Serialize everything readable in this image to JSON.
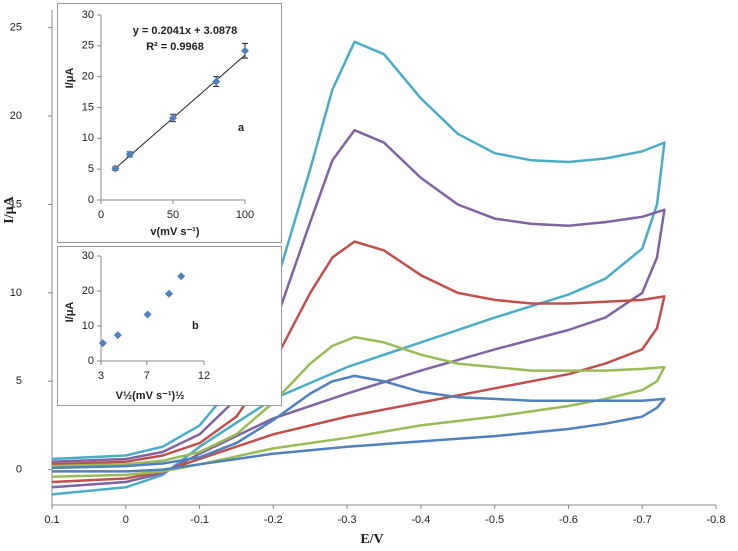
{
  "chart_data": [
    {
      "type": "line",
      "x_label": "E/V",
      "y_label": "I/μA",
      "xlim": [
        0.1,
        -0.8
      ],
      "xticks": [
        0.1,
        0,
        -0.1,
        -0.2,
        -0.3,
        -0.4,
        -0.5,
        -0.6,
        -0.7,
        -0.8
      ],
      "ylim": [
        -2,
        26
      ],
      "yticks": [
        0,
        5,
        10,
        15,
        20,
        25
      ],
      "x": [
        0.1,
        0,
        -0.05,
        -0.1,
        -0.15,
        -0.2,
        -0.25,
        -0.28,
        -0.31,
        -0.35,
        -0.4,
        -0.45,
        -0.5,
        -0.55,
        -0.6,
        -0.65,
        -0.7,
        -0.73,
        -0.72,
        -0.7,
        -0.65,
        -0.6,
        -0.5,
        -0.4,
        -0.3,
        -0.2,
        -0.1,
        -0.05,
        0,
        0.1
      ],
      "series": [
        {
          "color": "#4bacc6",
          "values": [
            0.6,
            0.8,
            1.3,
            2.5,
            5,
            10,
            17,
            21.5,
            24.2,
            23.5,
            21,
            19,
            17.9,
            17.5,
            17.4,
            17.6,
            18,
            18.5,
            15,
            12.5,
            10.8,
            9.9,
            8.6,
            7.2,
            5.8,
            4.0,
            1.3,
            -0.3,
            -1.0,
            -1.4
          ]
        },
        {
          "color": "#8064a2",
          "values": [
            0.45,
            0.6,
            1.0,
            2.0,
            4,
            8,
            14,
            17.5,
            19.2,
            18.5,
            16.5,
            15,
            14.2,
            13.9,
            13.8,
            14,
            14.3,
            14.7,
            12,
            10,
            8.6,
            7.9,
            6.8,
            5.6,
            4.3,
            2.9,
            0.9,
            -0.2,
            -0.7,
            -1.0
          ]
        },
        {
          "color": "#c0504d",
          "values": [
            0.3,
            0.45,
            0.8,
            1.5,
            3,
            6,
            10,
            12,
            12.9,
            12.4,
            11,
            10,
            9.6,
            9.4,
            9.4,
            9.5,
            9.6,
            9.8,
            8,
            6.8,
            6,
            5.4,
            4.6,
            3.8,
            3.0,
            2.0,
            0.6,
            -0.1,
            -0.5,
            -0.7
          ]
        },
        {
          "color": "#9bbb59",
          "values": [
            0.2,
            0.3,
            0.5,
            1,
            2,
            3.8,
            6,
            7,
            7.5,
            7.2,
            6.5,
            6,
            5.8,
            5.6,
            5.6,
            5.6,
            5.7,
            5.8,
            5,
            4.5,
            4,
            3.6,
            3.0,
            2.5,
            1.8,
            1.2,
            0.3,
            -0.1,
            -0.3,
            -0.4
          ]
        },
        {
          "color": "#4f81bd",
          "values": [
            0.1,
            0.2,
            0.35,
            0.7,
            1.5,
            2.8,
            4.3,
            5.0,
            5.3,
            5.0,
            4.4,
            4.1,
            4.0,
            3.9,
            3.9,
            3.9,
            3.9,
            4.0,
            3.5,
            3.0,
            2.6,
            2.3,
            1.9,
            1.6,
            1.3,
            0.9,
            0.3,
            0,
            -0.1,
            -0.1
          ]
        }
      ]
    },
    {
      "type": "scatter",
      "x_label": "v(mV s⁻¹)",
      "y_label": "I/μA",
      "annotation": "a",
      "equation": "y = 0.2041x + 3.0878",
      "r_squared": "R² = 0.9968",
      "xlim": [
        0,
        100
      ],
      "xticks": [
        0,
        50,
        100
      ],
      "ylim": [
        0,
        30
      ],
      "yticks": [
        0,
        5,
        10,
        15,
        20,
        25,
        30
      ],
      "color": "#4f81bd",
      "x": [
        10,
        20,
        50,
        80,
        100
      ],
      "values": [
        5.1,
        7.4,
        13.3,
        19.2,
        24.2
      ],
      "errors": [
        0.3,
        0.4,
        0.6,
        0.8,
        1.2
      ],
      "trendline": {
        "x": [
          10,
          100
        ],
        "values": [
          5.13,
          23.5
        ]
      }
    },
    {
      "type": "scatter",
      "x_label": "V½(mV s⁻¹)½",
      "y_label": "I/μA",
      "annotation": "b",
      "xlim": [
        3,
        12
      ],
      "xticks": [
        3,
        7,
        12
      ],
      "ylim": [
        0,
        30
      ],
      "yticks": [
        0,
        10,
        20,
        30
      ],
      "color": "#4f81bd",
      "x": [
        3.16,
        4.47,
        7.07,
        8.94,
        10
      ],
      "values": [
        5.1,
        7.4,
        13.3,
        19.2,
        24.2
      ]
    }
  ]
}
